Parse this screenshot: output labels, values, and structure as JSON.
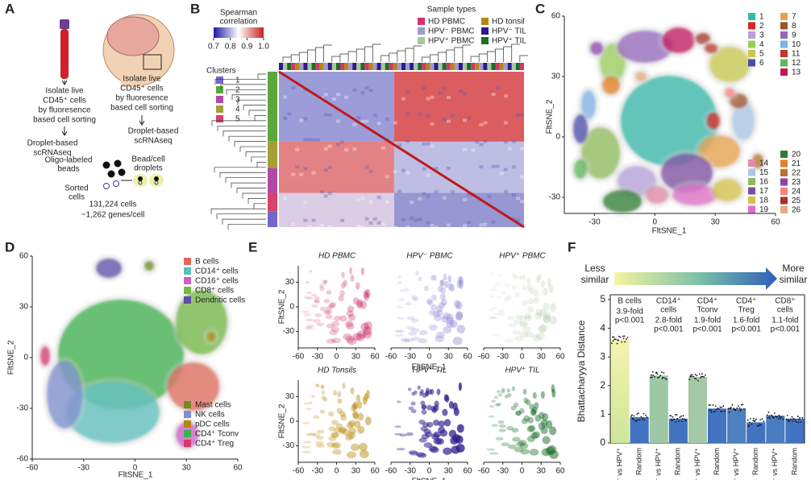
{
  "panel_a": {
    "label": "A",
    "left_steps": [
      "Isolate live",
      "CD45⁺ cells",
      "by fluoresence",
      "based cell sorting"
    ],
    "right_steps": [
      "Isolate live",
      "CD45⁺ cells",
      "by fluoresence",
      "based cell sorting"
    ],
    "left_seq": [
      "Droplet-based",
      "scRNAseq"
    ],
    "right_seq": [
      "Droplet-based",
      "scRNAseq"
    ],
    "beads": [
      "Oligo-labeled",
      "beads"
    ],
    "droplets": [
      "Bead/cell",
      "droplets"
    ],
    "sorted": [
      "Sorted",
      "cells"
    ],
    "summary": [
      "131,224 cells",
      "~1,262 genes/cell"
    ]
  },
  "panel_b": {
    "label": "B",
    "colorbar_title": [
      "Spearman",
      "correlation"
    ],
    "colorbar_lim": [
      0.7,
      1
    ],
    "colorbar_ticks": [
      0.7,
      0.8,
      0.9,
      {
        "value": 1,
        "label": "1.0"
      }
    ],
    "clusters_title": "Clusters",
    "clusters": [
      {
        "name": "1",
        "color": "#7467c9"
      },
      {
        "name": "2",
        "color": "#5aa83a"
      },
      {
        "name": "3",
        "color": "#b14aa6"
      },
      {
        "name": "4",
        "color": "#a3a035"
      },
      {
        "name": "5",
        "color": "#d9426a"
      }
    ],
    "sample_types_title": "Sample types",
    "sample_types": [
      {
        "name": "HD PBMC",
        "color": "#d6336c"
      },
      {
        "name": "HD tonsil",
        "color": "#b8860b"
      },
      {
        "name": "HPV⁻ PBMC",
        "color": "#a09ad0"
      },
      {
        "name": "HPV⁻ TIL",
        "color": "#2d1b8c"
      },
      {
        "name": "HPV⁺ PBMC",
        "color": "#a6c8a0"
      },
      {
        "name": "HPV⁺ TIL",
        "color": "#1a6e2a"
      }
    ]
  },
  "panel_c": {
    "label": "C",
    "xlabel": "FltSNE_1",
    "ylabel": "FltSNE_2",
    "xlim": [
      -45,
      60
    ],
    "ylim": [
      -38,
      60
    ],
    "xticks": [
      -30,
      0,
      30,
      60
    ],
    "yticks": [
      -30,
      0,
      30,
      60
    ],
    "clusters": [
      {
        "name": "1",
        "color": "#35b7a9"
      },
      {
        "name": "2",
        "color": "#d62728"
      },
      {
        "name": "3",
        "color": "#b5a0d9"
      },
      {
        "name": "4",
        "color": "#9acd5a"
      },
      {
        "name": "5",
        "color": "#c9c94e"
      },
      {
        "name": "6",
        "color": "#4b4ba8"
      },
      {
        "name": "7",
        "color": "#e8a04a"
      },
      {
        "name": "8",
        "color": "#a0522d"
      },
      {
        "name": "9",
        "color": "#9467bd"
      },
      {
        "name": "10",
        "color": "#7fb2e5"
      },
      {
        "name": "11",
        "color": "#c0392b"
      },
      {
        "name": "12",
        "color": "#5cb85c"
      },
      {
        "name": "13",
        "color": "#c2185b"
      },
      {
        "name": "14",
        "color": "#e08aa8"
      },
      {
        "name": "15",
        "color": "#a9c7e8"
      },
      {
        "name": "16",
        "color": "#8fbc5a"
      },
      {
        "name": "17",
        "color": "#7b4fa0"
      },
      {
        "name": "18",
        "color": "#d6c14a"
      },
      {
        "name": "19",
        "color": "#e06ec8"
      },
      {
        "name": "20",
        "color": "#2e7d32"
      },
      {
        "name": "21",
        "color": "#e67e22"
      },
      {
        "name": "22",
        "color": "#b87333"
      },
      {
        "name": "23",
        "color": "#8e44ad"
      },
      {
        "name": "24",
        "color": "#ff7f7f"
      },
      {
        "name": "25",
        "color": "#a93226"
      },
      {
        "name": "26",
        "color": "#e8a87c"
      }
    ]
  },
  "panel_d": {
    "label": "D",
    "xlabel": "FltSNE_1",
    "ylabel": "FltSNE_2",
    "xlim": [
      -60,
      60
    ],
    "ylim": [
      -60,
      60
    ],
    "xticks": [
      -60,
      -30,
      0,
      30,
      60
    ],
    "yticks": [
      -60,
      -30,
      0,
      30,
      60
    ],
    "legend_top": [
      {
        "name": "B cells",
        "color": "#e06a5a"
      },
      {
        "name": "CD14⁺ cells",
        "color": "#5bc0be"
      },
      {
        "name": "CD16⁺ cells",
        "color": "#cc5fc8"
      },
      {
        "name": "CD8⁺ cells",
        "color": "#72b843"
      },
      {
        "name": "Dendritic cells",
        "color": "#5b4fa8"
      }
    ],
    "legend_bottom": [
      {
        "name": "Mast cells",
        "color": "#6b8e23"
      },
      {
        "name": "NK cells",
        "color": "#7b8fcf"
      },
      {
        "name": "pDC cells",
        "color": "#b8860b"
      },
      {
        "name": "CD4⁺ Tconv",
        "color": "#3cb04b"
      },
      {
        "name": "CD4⁺ Treg",
        "color": "#d63a6a"
      }
    ]
  },
  "panel_e": {
    "label": "E",
    "xlabel": "FltSNE_1",
    "ylabel": "FltSNE_2",
    "xlim": [
      -60,
      60
    ],
    "ylim": [
      -50,
      50
    ],
    "xticks": [
      -60,
      -30,
      0,
      30,
      60
    ],
    "yticks": [
      -30,
      0,
      30
    ],
    "plots": [
      {
        "title": "HD PBMC",
        "color": "#c2185b"
      },
      {
        "title": "HPV⁻ PBMC",
        "color": "#8f8fd6"
      },
      {
        "title": "HPV⁺ PBMC",
        "color": "#9cbf8f"
      },
      {
        "title": "HD Tonsils",
        "color": "#b8860b"
      },
      {
        "title": "HPV⁻ TIL",
        "color": "#2d1b8c"
      },
      {
        "title": "HPV⁺ TIL",
        "color": "#1b6e2a"
      }
    ]
  },
  "panel_f": {
    "label": "F",
    "less_similar": [
      "Less",
      "similar"
    ],
    "more_similar": [
      "More",
      "similar"
    ]
  },
  "chart_data": {
    "type": "bar",
    "ylabel": "Bhattacharyya Distance",
    "ylim": [
      0,
      5
    ],
    "yticks": [
      0,
      1,
      2,
      3,
      4,
      5
    ],
    "categories": [
      "HPV⁻ vs HPV⁺",
      "Random",
      "HPV⁻ vs HPV⁺",
      "Random",
      "HPV⁻ vs HPV⁺",
      "Random",
      "HPV⁻ vs HPV⁺",
      "Random",
      "HPV⁻ vs HPV⁺",
      "Random"
    ],
    "values": [
      3.6,
      0.9,
      2.35,
      0.85,
      2.3,
      1.2,
      1.2,
      0.72,
      0.95,
      0.85
    ],
    "colors": [
      "#eef0a0",
      "#4173c0",
      "#9ec7a6",
      "#4173c0",
      "#a4c9a6",
      "#4173c0",
      "#4e7fbe",
      "#4173c0",
      "#4a7cc0",
      "#4173c0"
    ],
    "groups": [
      {
        "name": [
          "B cells"
        ],
        "fold": "3.9-fold",
        "p": "p<0.001"
      },
      {
        "name": [
          "CD14⁺",
          "cells"
        ],
        "fold": "2.8-fold",
        "p": "p<0.001"
      },
      {
        "name": [
          "CD4⁺",
          "Tconv"
        ],
        "fold": "1.9-fold",
        "p": "p<0.001"
      },
      {
        "name": [
          "CD4⁺",
          "Treg"
        ],
        "fold": "1.6-fold",
        "p": "p<0.001"
      },
      {
        "name": [
          "CD8⁺",
          "cells"
        ],
        "fold": "1.1-fold",
        "p": "p<0.001"
      }
    ]
  }
}
